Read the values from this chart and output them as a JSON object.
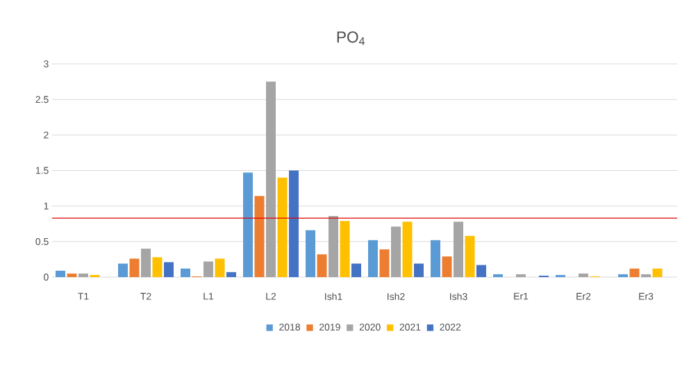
{
  "chart_data": {
    "type": "bar",
    "title": "PO$_{4}$",
    "categories": [
      "T1",
      "T2",
      "L1",
      "L2",
      "Ish1",
      "Ish2",
      "Ish3",
      "Er1",
      "Er2",
      "Er3"
    ],
    "series": [
      {
        "name": "2018",
        "color": "#5b9bd5",
        "values": [
          0.09,
          0.19,
          0.12,
          1.47,
          0.66,
          0.52,
          0.52,
          0.04,
          0.03,
          0.04
        ]
      },
      {
        "name": "2019",
        "color": "#ed7d31",
        "values": [
          0.05,
          0.26,
          0.01,
          1.14,
          0.32,
          0.39,
          0.29,
          null,
          null,
          0.12
        ]
      },
      {
        "name": "2020",
        "color": "#a5a5a5",
        "values": [
          0.05,
          0.4,
          0.22,
          2.75,
          0.86,
          0.71,
          0.78,
          0.04,
          0.05,
          0.04
        ]
      },
      {
        "name": "2021",
        "color": "#ffc000",
        "values": [
          0.03,
          0.28,
          0.26,
          1.4,
          0.79,
          0.78,
          0.58,
          null,
          0.01,
          0.12
        ]
      },
      {
        "name": "2022",
        "color": "#4472c4",
        "values": [
          null,
          0.21,
          0.07,
          1.5,
          0.19,
          0.19,
          0.17,
          0.02,
          null,
          null
        ]
      }
    ],
    "ylim": [
      0,
      3
    ],
    "yticks": [
      0,
      0.5,
      1,
      1.5,
      2,
      2.5,
      3
    ],
    "ref_lines": [
      {
        "axis": "y",
        "value": 0.83,
        "color": "#e00000"
      }
    ],
    "grid": "y",
    "legend": "bottom"
  }
}
